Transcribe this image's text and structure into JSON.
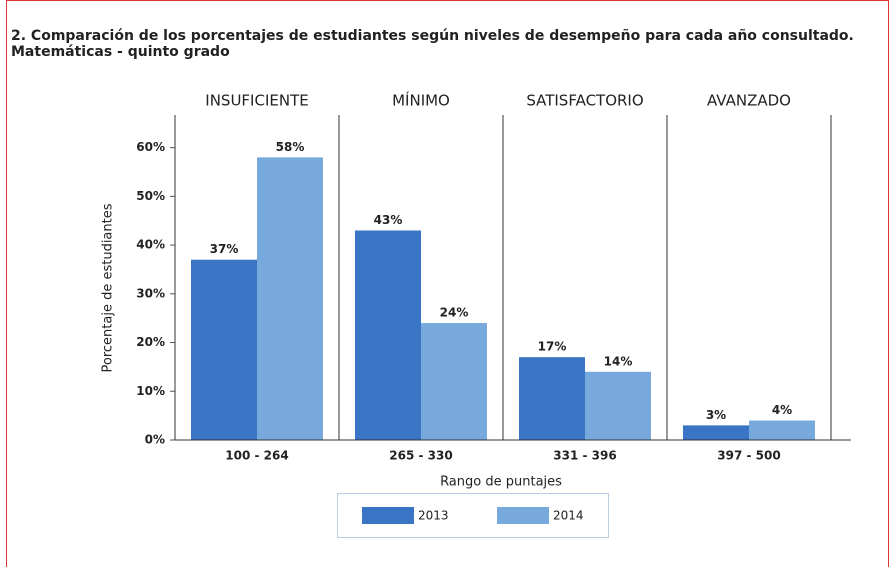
{
  "chart_data": {
    "type": "bar",
    "title": "2. Comparación de los porcentajes de estudiantes según niveles de desempeño para cada año consultado.",
    "subtitle": "Matemáticas - quinto grado",
    "group_labels": [
      "INSUFICIENTE",
      "MÍNIMO",
      "SATISFACTORIO",
      "AVANZADO"
    ],
    "categories": [
      "100 - 264",
      "265 - 330",
      "331 - 396",
      "397 - 500"
    ],
    "x_label": "Rango de puntajes",
    "y_label": "Porcentaje de estudiantes",
    "series": [
      {
        "name": "2013",
        "color": "#3a74c4",
        "values": [
          37,
          43,
          17,
          3
        ],
        "value_labels": [
          "37%",
          "43%",
          "17%",
          "3%"
        ]
      },
      {
        "name": "2014",
        "color": "#78a9dc",
        "values": [
          58,
          24,
          14,
          4
        ],
        "value_labels": [
          "58%",
          "24%",
          "14%",
          "4%"
        ]
      }
    ],
    "ylim": [
      0,
      66.7
    ],
    "yticks": [
      {
        "value": 0,
        "label": "0%"
      },
      {
        "value": 10,
        "label": "10%"
      },
      {
        "value": 20,
        "label": "20%"
      },
      {
        "value": 30,
        "label": "30%"
      },
      {
        "value": 40,
        "label": "40%"
      },
      {
        "value": 50,
        "label": "50%"
      },
      {
        "value": 60,
        "label": "60%"
      }
    ],
    "legend": "bottom"
  }
}
